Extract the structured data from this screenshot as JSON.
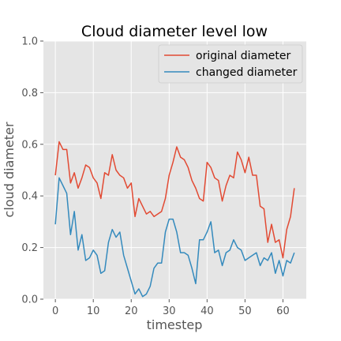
{
  "chart_data": {
    "type": "line",
    "title": "Cloud diameter level low",
    "xlabel": "timestep",
    "ylabel": "cloud diameter",
    "xlim": [
      -3.15,
      66.15
    ],
    "ylim": [
      0.0,
      1.0
    ],
    "xticks": [
      "0",
      "10",
      "20",
      "30",
      "40",
      "50",
      "60"
    ],
    "yticks": [
      "0.0",
      "0.2",
      "0.4",
      "0.6",
      "0.8",
      "1.0"
    ],
    "grid": true,
    "legend_position": "upper-right",
    "x": [
      0,
      1,
      2,
      3,
      4,
      5,
      6,
      7,
      8,
      9,
      10,
      11,
      12,
      13,
      14,
      15,
      16,
      17,
      18,
      19,
      20,
      21,
      22,
      23,
      24,
      25,
      26,
      27,
      28,
      29,
      30,
      31,
      32,
      33,
      34,
      35,
      36,
      37,
      38,
      39,
      40,
      41,
      42,
      43,
      44,
      45,
      46,
      47,
      48,
      49,
      50,
      51,
      52,
      53,
      54,
      55,
      56,
      57,
      58,
      59,
      60,
      61,
      62,
      63
    ],
    "series": [
      {
        "name": "original diameter",
        "color": "#e24a33",
        "values": [
          0.48,
          0.61,
          0.58,
          0.58,
          0.45,
          0.49,
          0.43,
          0.47,
          0.52,
          0.51,
          0.47,
          0.45,
          0.39,
          0.49,
          0.48,
          0.56,
          0.5,
          0.48,
          0.47,
          0.43,
          0.45,
          0.32,
          0.39,
          0.36,
          0.33,
          0.34,
          0.32,
          0.33,
          0.34,
          0.39,
          0.48,
          0.53,
          0.59,
          0.55,
          0.54,
          0.51,
          0.46,
          0.43,
          0.39,
          0.38,
          0.53,
          0.51,
          0.47,
          0.46,
          0.38,
          0.44,
          0.48,
          0.47,
          0.57,
          0.54,
          0.49,
          0.55,
          0.48,
          0.48,
          0.36,
          0.35,
          0.22,
          0.29,
          0.22,
          0.23,
          0.16,
          0.27,
          0.32,
          0.43
        ]
      },
      {
        "name": "changed diameter",
        "color": "#348abd",
        "values": [
          0.29,
          0.47,
          0.44,
          0.41,
          0.25,
          0.34,
          0.19,
          0.25,
          0.15,
          0.16,
          0.19,
          0.17,
          0.1,
          0.11,
          0.22,
          0.27,
          0.24,
          0.26,
          0.17,
          0.12,
          0.07,
          0.02,
          0.04,
          0.01,
          0.02,
          0.05,
          0.12,
          0.14,
          0.14,
          0.26,
          0.31,
          0.31,
          0.26,
          0.18,
          0.18,
          0.17,
          0.12,
          0.06,
          0.23,
          0.23,
          0.26,
          0.3,
          0.18,
          0.19,
          0.13,
          0.18,
          0.19,
          0.23,
          0.2,
          0.19,
          0.15,
          0.16,
          0.17,
          0.18,
          0.13,
          0.16,
          0.15,
          0.18,
          0.1,
          0.15,
          0.09,
          0.15,
          0.14,
          0.18
        ]
      }
    ]
  }
}
